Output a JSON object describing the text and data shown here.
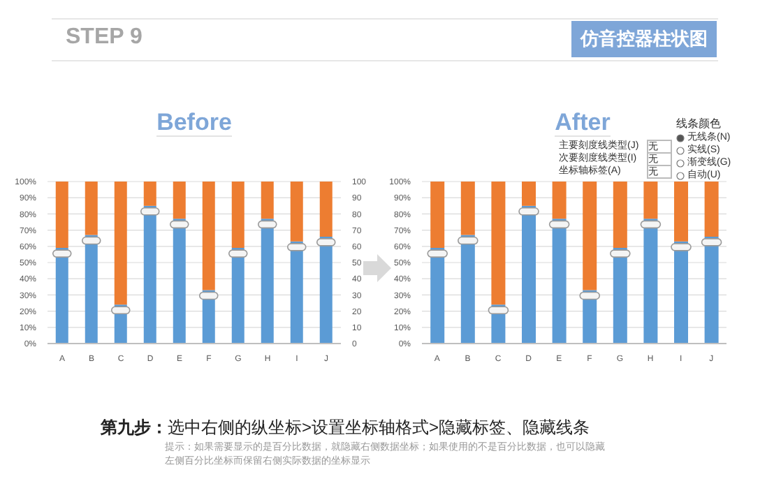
{
  "chart_data": [
    {
      "type": "bar",
      "title": "Before",
      "stacked": true,
      "grid": "y",
      "categories": [
        "A",
        "B",
        "C",
        "D",
        "E",
        "F",
        "G",
        "H",
        "I",
        "J"
      ],
      "series": [
        {
          "color": "#5b9bd5",
          "values": [
            59,
            67,
            24,
            85,
            77,
            33,
            59,
            77,
            63,
            66
          ]
        },
        {
          "color": "#ed7d31",
          "values": [
            41,
            33,
            76,
            15,
            23,
            67,
            41,
            23,
            37,
            34
          ]
        }
      ],
      "ylim": [
        0,
        100
      ],
      "yticks": [
        {
          "value": 0,
          "label": "0%"
        },
        {
          "value": 10,
          "label": "10%"
        },
        {
          "value": 20,
          "label": "20%"
        },
        {
          "value": 30,
          "label": "30%"
        },
        {
          "value": 40,
          "label": "40%"
        },
        {
          "value": 50,
          "label": "50%"
        },
        {
          "value": 60,
          "label": "60%"
        },
        {
          "value": 70,
          "label": "70%"
        },
        {
          "value": 80,
          "label": "80%"
        },
        {
          "value": 90,
          "label": "90%"
        },
        {
          "value": 100,
          "label": "100%"
        }
      ],
      "y2lim": [
        0,
        100
      ],
      "y2ticks": [
        0,
        10,
        20,
        30,
        40,
        50,
        60,
        70,
        80,
        90,
        100
      ],
      "annotations": [
        "STEP 9",
        "仿音控器柱状图",
        "第九步：",
        "选中右侧的纵坐标>设置坐标轴格式>隐藏标签、隐藏线条",
        "提示：如果需要显示的是百分比数据，就隐藏右侧数据坐标；如果使用的不是百分比数据，也可以隐藏左侧百分比坐标而保留右侧实际数据的坐标显示"
      ]
    },
    {
      "type": "bar",
      "title": "After",
      "stacked": true,
      "grid": "y",
      "categories": [
        "A",
        "B",
        "C",
        "D",
        "E",
        "F",
        "G",
        "H",
        "I",
        "J"
      ],
      "series": [
        {
          "color": "#5b9bd5",
          "values": [
            59,
            67,
            24,
            85,
            77,
            33,
            59,
            77,
            63,
            66
          ]
        },
        {
          "color": "#ed7d31",
          "values": [
            41,
            33,
            76,
            15,
            23,
            67,
            41,
            23,
            37,
            34
          ]
        }
      ],
      "ylim": [
        0,
        100
      ],
      "yticks": [
        {
          "value": 0,
          "label": "0%"
        },
        {
          "value": 10,
          "label": "10%"
        },
        {
          "value": 20,
          "label": "20%"
        },
        {
          "value": 30,
          "label": "30%"
        },
        {
          "value": 40,
          "label": "40%"
        },
        {
          "value": 50,
          "label": "50%"
        },
        {
          "value": 60,
          "label": "60%"
        },
        {
          "value": 70,
          "label": "70%"
        },
        {
          "value": 80,
          "label": "80%"
        },
        {
          "value": 90,
          "label": "90%"
        },
        {
          "value": 100,
          "label": "100%"
        }
      ],
      "annotations": [
        "线条颜色",
        "主要刻度线类型(J)",
        "次要刻度线类型(I)",
        "坐标轴标签(A)",
        "无",
        "无",
        "无",
        "无线条(N)",
        "实线(S)",
        "渐变线(G)",
        "自动(U)"
      ]
    }
  ]
}
